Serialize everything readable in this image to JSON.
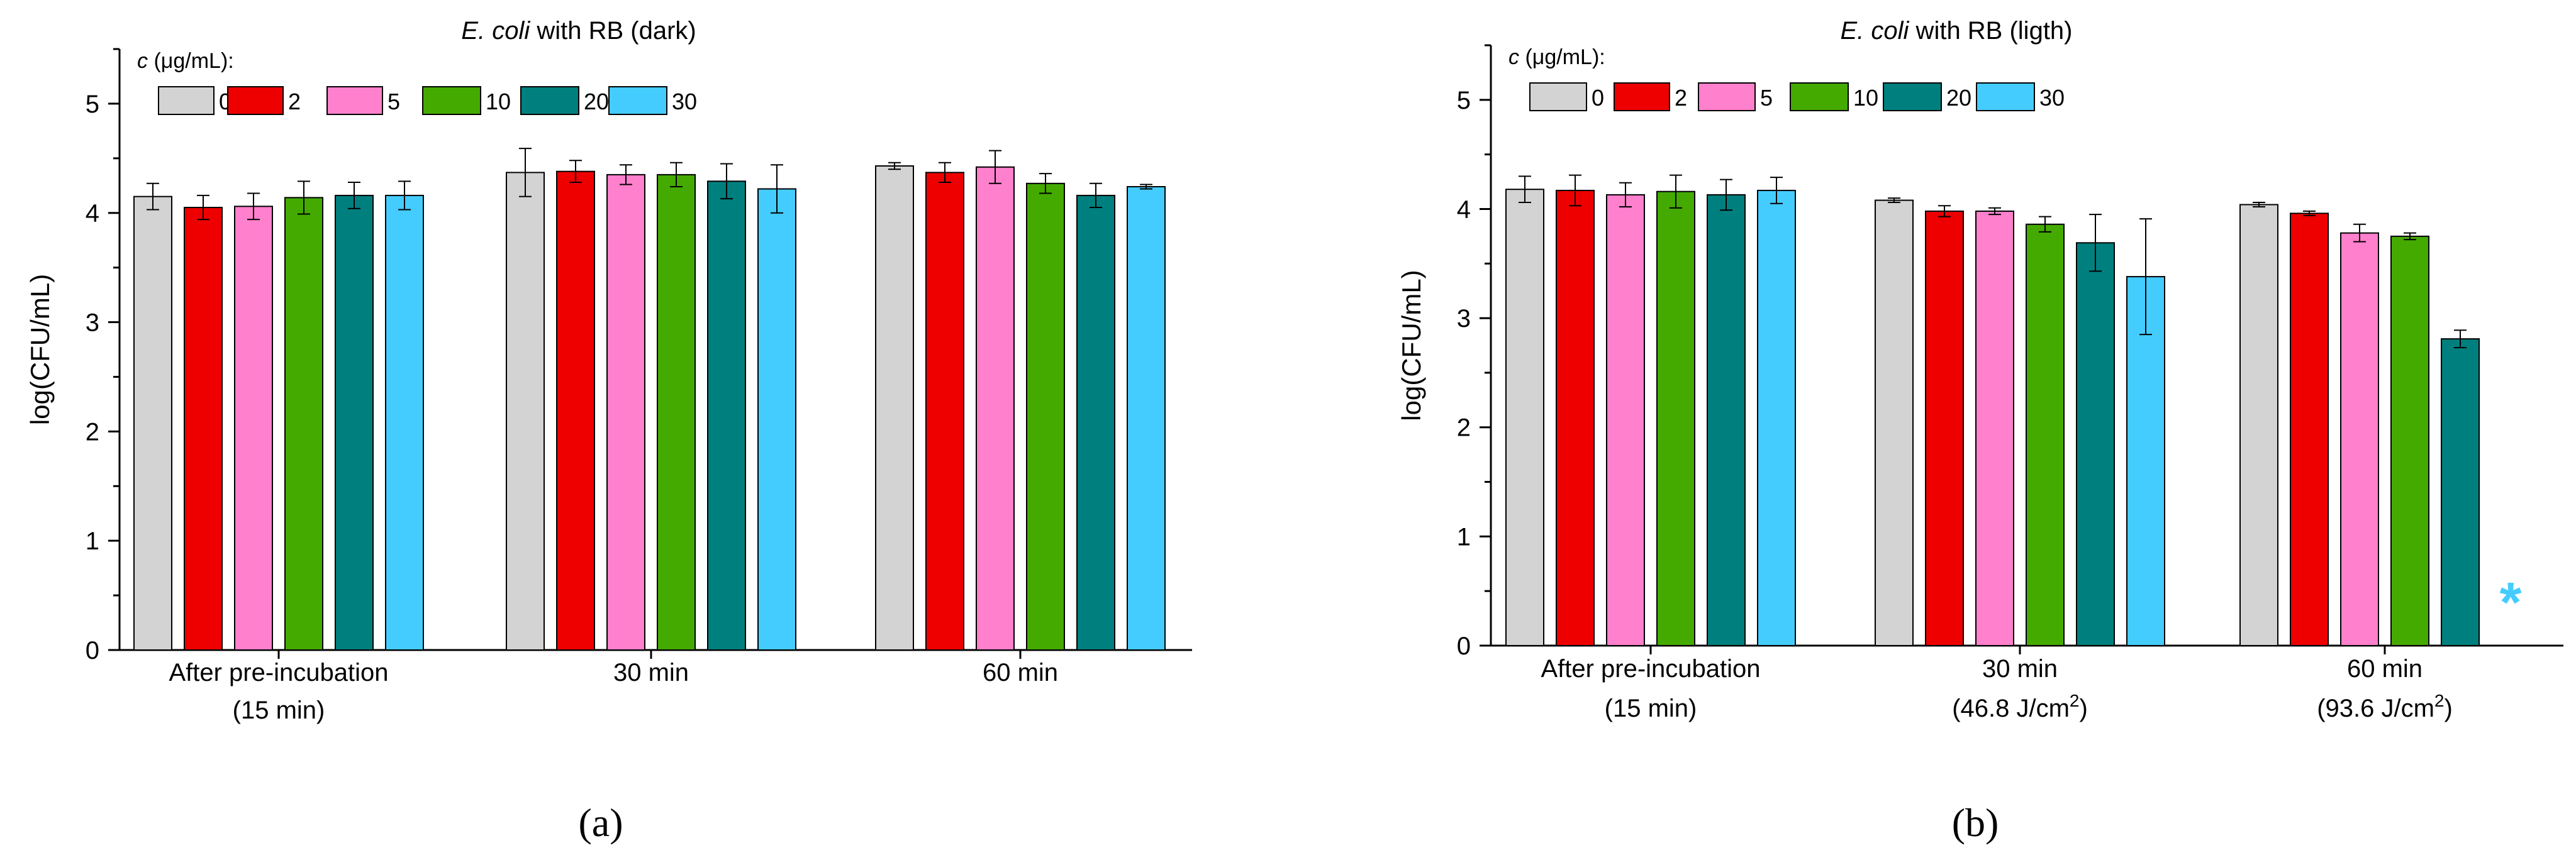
{
  "figure": {
    "panels": [
      "(a)",
      "(b)"
    ]
  },
  "chart_data": [
    {
      "type": "bar",
      "title_italic": "E. coli",
      "title_rest": " with RB (dark)",
      "ylabel": "log(CFU/mL)",
      "xlabel": "",
      "ylim": [
        0,
        5.5
      ],
      "yticks": [
        0,
        1,
        2,
        3,
        4,
        5
      ],
      "grid": false,
      "legend_position": "top-left",
      "legend_title_italic": "c",
      "legend_title_rest": " (μg/mL):",
      "categories": [
        {
          "line1": "After pre-incubation",
          "line2": "(15 min)"
        },
        {
          "line1": "30 min",
          "line2": ""
        },
        {
          "line1": "60 min",
          "line2": ""
        }
      ],
      "series": [
        {
          "name": "0",
          "color": "#d3d3d3",
          "values": [
            4.15,
            4.37,
            4.43
          ],
          "errors": [
            0.12,
            0.22,
            0.03
          ]
        },
        {
          "name": "2",
          "color": "#ee0000",
          "values": [
            4.05,
            4.38,
            4.37
          ],
          "errors": [
            0.11,
            0.1,
            0.09
          ]
        },
        {
          "name": "5",
          "color": "#ff80cc",
          "values": [
            4.06,
            4.35,
            4.42
          ],
          "errors": [
            0.12,
            0.09,
            0.15
          ]
        },
        {
          "name": "10",
          "color": "#44aa00",
          "values": [
            4.14,
            4.35,
            4.27
          ],
          "errors": [
            0.15,
            0.11,
            0.09
          ]
        },
        {
          "name": "20",
          "color": "#007f7f",
          "values": [
            4.16,
            4.29,
            4.16
          ],
          "errors": [
            0.12,
            0.16,
            0.11
          ]
        },
        {
          "name": "30",
          "color": "#44ccff",
          "values": [
            4.16,
            4.22,
            4.24
          ],
          "errors": [
            0.13,
            0.22,
            0.02
          ]
        }
      ],
      "annotations": []
    },
    {
      "type": "bar",
      "title_italic": "E. coli",
      "title_rest": " with RB (ligth)",
      "ylabel": "log(CFU/mL)",
      "xlabel": "",
      "ylim": [
        0,
        5.5
      ],
      "yticks": [
        0,
        1,
        2,
        3,
        4,
        5
      ],
      "grid": false,
      "legend_position": "top-left",
      "legend_title_italic": "c",
      "legend_title_rest": " (μg/mL):",
      "categories": [
        {
          "line1": "After pre-incubation",
          "line2": "(15 min)"
        },
        {
          "line1": "30 min",
          "line2": "(46.8 J/cm",
          "line2_sup": "2",
          "line2_end": ")"
        },
        {
          "line1": "60 min",
          "line2": "(93.6 J/cm",
          "line2_sup": "2",
          "line2_end": ")"
        }
      ],
      "series": [
        {
          "name": "0",
          "color": "#d3d3d3",
          "values": [
            4.18,
            4.08,
            4.04
          ],
          "errors": [
            0.12,
            0.02,
            0.02
          ]
        },
        {
          "name": "2",
          "color": "#ee0000",
          "values": [
            4.17,
            3.98,
            3.96
          ],
          "errors": [
            0.14,
            0.05,
            0.02
          ]
        },
        {
          "name": "5",
          "color": "#ff80cc",
          "values": [
            4.13,
            3.98,
            3.78
          ],
          "errors": [
            0.11,
            0.03,
            0.08
          ]
        },
        {
          "name": "10",
          "color": "#44aa00",
          "values": [
            4.16,
            3.86,
            3.75
          ],
          "errors": [
            0.15,
            0.07,
            0.03
          ]
        },
        {
          "name": "20",
          "color": "#007f7f",
          "values": [
            4.13,
            3.69,
            2.81
          ],
          "errors": [
            0.14,
            0.26,
            0.08
          ]
        },
        {
          "name": "30",
          "color": "#44ccff",
          "values": [
            4.17,
            3.38,
            null
          ],
          "errors": [
            0.12,
            0.53,
            null
          ]
        }
      ],
      "annotations": [
        {
          "text": "*",
          "category_index": 2,
          "series_index": 5,
          "value": 0.45,
          "color": "#44ccff"
        }
      ]
    }
  ]
}
